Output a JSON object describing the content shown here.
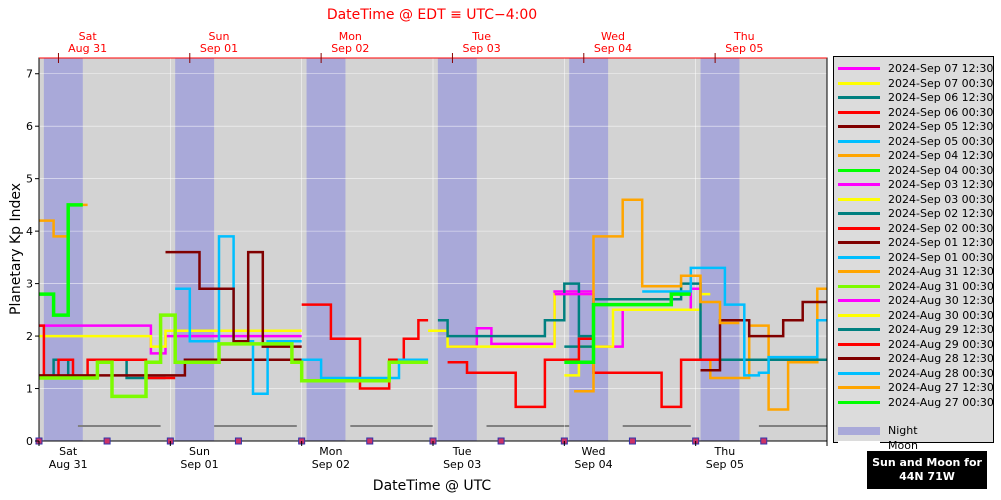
{
  "top_title": "DateTime @ EDT ≡ UTC−4:00",
  "footnote": {
    "line1": "Sun and Moon for",
    "line2": "44N 71W"
  },
  "chart_data": {
    "type": "line",
    "ylabel": "Planetary Kp Index",
    "xlabel": "DateTime @ UTC",
    "ylim": [
      0,
      7.3
    ],
    "yticks": [
      0,
      1,
      2,
      3,
      4,
      5,
      6,
      7
    ],
    "xlim_hours": [
      0,
      162
    ],
    "day_ticks": [
      {
        "h": 6,
        "day": "Sat",
        "date": "Aug 31"
      },
      {
        "h": 33,
        "day": "Sun",
        "date": "Sep 01"
      },
      {
        "h": 60,
        "day": "Mon",
        "date": "Sep 02"
      },
      {
        "h": 87,
        "day": "Tue",
        "date": "Sep 03"
      },
      {
        "h": 114,
        "day": "Wed",
        "date": "Sep 04"
      },
      {
        "h": 141,
        "day": "Thu",
        "date": "Sep 05"
      }
    ],
    "top_day_ticks": [
      {
        "h": 10,
        "day": "Sat",
        "date": "Aug 31"
      },
      {
        "h": 37,
        "day": "Sun",
        "date": "Sep 01"
      },
      {
        "h": 64,
        "day": "Mon",
        "date": "Sep 02"
      },
      {
        "h": 91,
        "day": "Tue",
        "date": "Sep 03"
      },
      {
        "h": 118,
        "day": "Wed",
        "date": "Sep 04"
      },
      {
        "h": 145,
        "day": "Thu",
        "date": "Sep 05"
      }
    ],
    "night_intervals": [
      [
        1,
        9
      ],
      [
        28,
        36
      ],
      [
        55,
        63
      ],
      [
        82,
        90
      ],
      [
        109,
        117
      ],
      [
        136,
        144
      ]
    ],
    "moon_intervals": [
      [
        8,
        25
      ],
      [
        36,
        53
      ],
      [
        64,
        81
      ],
      [
        92,
        109
      ],
      [
        120,
        134
      ],
      [
        148,
        162
      ]
    ],
    "moon_markers": [
      0,
      14,
      27,
      41,
      54,
      68,
      81,
      95,
      108,
      122,
      135,
      149
    ],
    "series": [
      {
        "name": "2024-Sep 07 12:30",
        "color": "#ff00ff",
        "points": [
          [
            0,
            2.2
          ],
          [
            23,
            2.2
          ],
          [
            23,
            1.67
          ],
          [
            26,
            1.67
          ],
          [
            26,
            2.0
          ],
          [
            54,
            2.0
          ]
        ]
      },
      {
        "name": "2024-Sep 07 00:30",
        "color": "#ffff00",
        "points": [
          [
            0,
            2.0
          ],
          [
            23,
            2.0
          ],
          [
            23,
            1.8
          ],
          [
            26,
            1.8
          ],
          [
            26,
            2.1
          ],
          [
            54,
            2.1
          ]
        ]
      },
      {
        "name": "2024-Sep 06 12:30",
        "color": "#008080",
        "points": [
          [
            0,
            1.2
          ],
          [
            3,
            1.2
          ],
          [
            3,
            1.55
          ],
          [
            6,
            1.55
          ],
          [
            6,
            1.2
          ],
          [
            12,
            1.2
          ],
          [
            12,
            1.55
          ],
          [
            18,
            1.55
          ],
          [
            18,
            1.2
          ],
          [
            26,
            1.2
          ]
        ]
      },
      {
        "name": "2024-Sep 06 00:30",
        "color": "#ff0000",
        "points": [
          [
            0,
            2.2
          ],
          [
            1,
            2.2
          ],
          [
            1,
            1.2
          ],
          [
            4,
            1.2
          ],
          [
            4,
            1.55
          ],
          [
            7,
            1.55
          ],
          [
            7,
            1.2
          ],
          [
            10,
            1.2
          ],
          [
            10,
            1.55
          ],
          [
            22,
            1.55
          ],
          [
            22,
            1.2
          ],
          [
            28,
            1.2
          ]
        ]
      },
      {
        "name": "2024-Sep 05 12:30",
        "color": "#800000",
        "points": [
          [
            0,
            1.25
          ],
          [
            30,
            1.25
          ],
          [
            30,
            1.55
          ],
          [
            54,
            1.55
          ]
        ]
      },
      {
        "name": "2024-Sep 05 00:30",
        "color": "#00bfff",
        "points": [
          [
            28,
            2.9
          ],
          [
            31,
            2.9
          ],
          [
            31,
            1.9
          ],
          [
            37,
            1.9
          ],
          [
            37,
            3.9
          ],
          [
            40,
            3.9
          ],
          [
            40,
            1.9
          ],
          [
            44,
            1.9
          ],
          [
            44,
            0.9
          ],
          [
            47,
            0.9
          ],
          [
            47,
            1.9
          ],
          [
            54,
            1.9
          ]
        ]
      },
      {
        "name": "2024-Sep 04 12:30",
        "color": "#ffa500",
        "points": [
          [
            0,
            4.2
          ],
          [
            3,
            4.2
          ],
          [
            3,
            3.9
          ],
          [
            6,
            3.9
          ],
          [
            6,
            4.5
          ],
          [
            10,
            4.5
          ]
        ]
      },
      {
        "name": "2024-Sep 04 00:30",
        "color": "#00ff00",
        "points": [
          [
            0,
            2.8
          ],
          [
            3,
            2.8
          ],
          [
            3,
            2.4
          ],
          [
            6,
            2.4
          ],
          [
            6,
            4.5
          ],
          [
            9,
            4.5
          ]
        ]
      },
      {
        "name": "2024-Sep 03 12:30",
        "color": "#ff00ff",
        "points": [
          [
            84,
            1.8
          ],
          [
            90,
            1.8
          ],
          [
            90,
            2.15
          ],
          [
            93,
            2.15
          ],
          [
            93,
            1.85
          ],
          [
            106,
            1.85
          ],
          [
            106,
            2.85
          ],
          [
            114,
            2.85
          ]
        ]
      },
      {
        "name": "2024-Sep 03 00:30",
        "color": "#ffff00",
        "points": [
          [
            80,
            2.1
          ],
          [
            84,
            2.1
          ],
          [
            84,
            1.8
          ],
          [
            106,
            1.8
          ],
          [
            106,
            2.8
          ],
          [
            114,
            2.8
          ]
        ]
      },
      {
        "name": "2024-Sep 02 12:30",
        "color": "#008080",
        "points": [
          [
            82,
            2.3
          ],
          [
            84,
            2.3
          ],
          [
            84,
            2.0
          ],
          [
            104,
            2.0
          ],
          [
            104,
            2.3
          ],
          [
            108,
            2.3
          ],
          [
            108,
            3.0
          ],
          [
            111,
            3.0
          ],
          [
            111,
            2.0
          ],
          [
            114,
            2.0
          ]
        ]
      },
      {
        "name": "2024-Sep 02 00:30",
        "color": "#ff0000",
        "points": [
          [
            54,
            2.6
          ],
          [
            60,
            2.6
          ],
          [
            60,
            1.95
          ],
          [
            66,
            1.95
          ],
          [
            66,
            1.0
          ],
          [
            72,
            1.0
          ],
          [
            72,
            1.55
          ],
          [
            75,
            1.55
          ],
          [
            75,
            1.95
          ],
          [
            78,
            1.95
          ],
          [
            78,
            2.3
          ],
          [
            80,
            2.3
          ]
        ]
      },
      {
        "name": "2024-Sep 01 12:30",
        "color": "#800000",
        "points": [
          [
            26,
            3.6
          ],
          [
            33,
            3.6
          ],
          [
            33,
            2.9
          ],
          [
            40,
            2.9
          ],
          [
            40,
            1.9
          ],
          [
            43,
            1.9
          ],
          [
            43,
            3.6
          ],
          [
            46,
            3.6
          ],
          [
            46,
            1.8
          ],
          [
            54,
            1.8
          ]
        ]
      },
      {
        "name": "2024-Sep 01 00:30",
        "color": "#00bfff",
        "points": [
          [
            54,
            1.55
          ],
          [
            58,
            1.55
          ],
          [
            58,
            1.2
          ],
          [
            74,
            1.2
          ],
          [
            74,
            1.55
          ],
          [
            80,
            1.55
          ]
        ]
      },
      {
        "name": "2024-Aug 31 12:30",
        "color": "#ffa500",
        "points": [
          [
            132,
            1.55
          ],
          [
            138,
            1.55
          ],
          [
            138,
            1.2
          ],
          [
            146,
            1.2
          ],
          [
            146,
            2.2
          ],
          [
            150,
            2.2
          ],
          [
            150,
            0.6
          ],
          [
            154,
            0.6
          ],
          [
            154,
            1.5
          ],
          [
            160,
            1.5
          ],
          [
            160,
            2.9
          ],
          [
            162,
            2.9
          ]
        ]
      },
      {
        "name": "2024-Aug 31 00:30",
        "color": "#7cfc00",
        "points": [
          [
            0,
            1.2
          ],
          [
            12,
            1.2
          ],
          [
            12,
            1.5
          ],
          [
            15,
            1.5
          ],
          [
            15,
            0.85
          ],
          [
            22,
            0.85
          ],
          [
            22,
            1.5
          ],
          [
            25,
            1.5
          ],
          [
            25,
            2.4
          ],
          [
            28,
            2.4
          ],
          [
            28,
            1.5
          ],
          [
            37,
            1.5
          ],
          [
            37,
            1.85
          ],
          [
            52,
            1.85
          ],
          [
            52,
            1.5
          ],
          [
            54,
            1.5
          ],
          [
            54,
            1.15
          ],
          [
            72,
            1.15
          ],
          [
            72,
            1.5
          ],
          [
            80,
            1.5
          ]
        ]
      },
      {
        "name": "2024-Aug 30 12:30",
        "color": "#ff00ff",
        "points": [
          [
            106,
            2.8
          ],
          [
            114,
            2.8
          ],
          [
            114,
            1.8
          ],
          [
            120,
            1.8
          ],
          [
            120,
            2.5
          ],
          [
            134,
            2.5
          ],
          [
            134,
            2.9
          ],
          [
            136,
            2.9
          ]
        ]
      },
      {
        "name": "2024-Aug 30 00:30",
        "color": "#ffff00",
        "points": [
          [
            108,
            1.25
          ],
          [
            111,
            1.25
          ],
          [
            111,
            1.8
          ],
          [
            118,
            1.8
          ],
          [
            118,
            2.5
          ],
          [
            136,
            2.5
          ],
          [
            136,
            2.8
          ],
          [
            138,
            2.8
          ]
        ]
      },
      {
        "name": "2024-Aug 29 12:30",
        "color": "#008080",
        "points": [
          [
            108,
            1.8
          ],
          [
            114,
            1.8
          ],
          [
            114,
            2.7
          ],
          [
            132,
            2.7
          ],
          [
            132,
            3.0
          ],
          [
            136,
            3.0
          ],
          [
            136,
            1.55
          ],
          [
            162,
            1.55
          ]
        ]
      },
      {
        "name": "2024-Aug 29 00:30",
        "color": "#ff0000",
        "points": [
          [
            84,
            1.5
          ],
          [
            88,
            1.5
          ],
          [
            88,
            1.3
          ],
          [
            98,
            1.3
          ],
          [
            98,
            0.65
          ],
          [
            104,
            0.65
          ],
          [
            104,
            1.55
          ],
          [
            111,
            1.55
          ],
          [
            111,
            1.95
          ],
          [
            114,
            1.95
          ],
          [
            114,
            1.3
          ],
          [
            128,
            1.3
          ],
          [
            128,
            0.65
          ],
          [
            132,
            0.65
          ],
          [
            132,
            1.55
          ],
          [
            140,
            1.55
          ]
        ]
      },
      {
        "name": "2024-Aug 28 12:30",
        "color": "#800000",
        "points": [
          [
            136,
            1.35
          ],
          [
            140,
            1.35
          ],
          [
            140,
            2.3
          ],
          [
            146,
            2.3
          ],
          [
            146,
            2.0
          ],
          [
            153,
            2.0
          ],
          [
            153,
            2.3
          ],
          [
            157,
            2.3
          ],
          [
            157,
            2.65
          ],
          [
            162,
            2.65
          ]
        ]
      },
      {
        "name": "2024-Aug 28 00:30",
        "color": "#00bfff",
        "points": [
          [
            124,
            2.85
          ],
          [
            134,
            2.85
          ],
          [
            134,
            3.3
          ],
          [
            141,
            3.3
          ],
          [
            141,
            2.6
          ],
          [
            145,
            2.6
          ],
          [
            145,
            1.25
          ],
          [
            148,
            1.25
          ],
          [
            148,
            1.3
          ],
          [
            150,
            1.3
          ],
          [
            150,
            1.6
          ],
          [
            160,
            1.6
          ],
          [
            160,
            2.3
          ],
          [
            162,
            2.3
          ]
        ]
      },
      {
        "name": "2024-Aug 27 12:30",
        "color": "#ffa500",
        "points": [
          [
            110,
            0.95
          ],
          [
            114,
            0.95
          ],
          [
            114,
            3.9
          ],
          [
            120,
            3.9
          ],
          [
            120,
            4.6
          ],
          [
            124,
            4.6
          ],
          [
            124,
            2.95
          ],
          [
            132,
            2.95
          ],
          [
            132,
            3.15
          ],
          [
            136,
            3.15
          ],
          [
            136,
            2.65
          ],
          [
            140,
            2.65
          ],
          [
            140,
            2.25
          ],
          [
            144,
            2.25
          ]
        ]
      },
      {
        "name": "2024-Aug 27 00:30",
        "color": "#00ff00",
        "points": [
          [
            108,
            1.5
          ],
          [
            114,
            1.5
          ],
          [
            114,
            2.6
          ],
          [
            130,
            2.6
          ],
          [
            130,
            2.8
          ],
          [
            134,
            2.8
          ]
        ]
      }
    ],
    "legend_extra": [
      {
        "name": "Night",
        "color": "#a9a9d9"
      },
      {
        "name": "Moon",
        "color": "#ffffff"
      }
    ]
  }
}
